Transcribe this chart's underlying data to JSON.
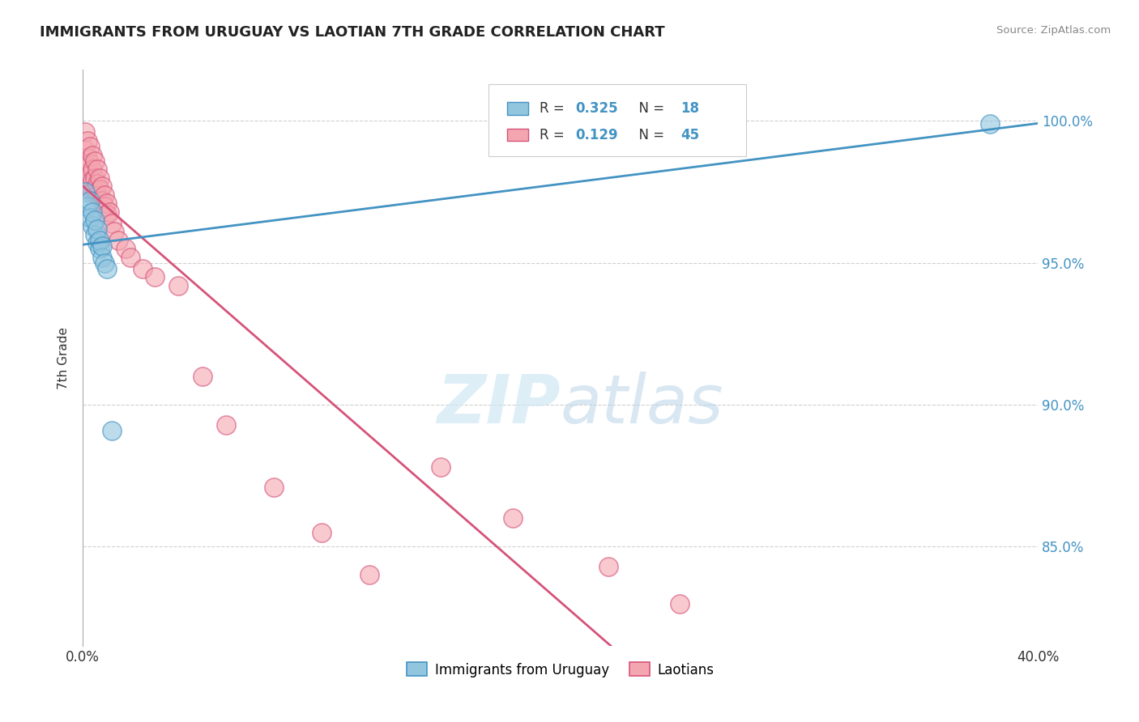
{
  "title": "IMMIGRANTS FROM URUGUAY VS LAOTIAN 7TH GRADE CORRELATION CHART",
  "source_text": "Source: ZipAtlas.com",
  "ylabel": "7th Grade",
  "x_min": 0.0,
  "x_max": 0.4,
  "y_min": 0.815,
  "y_max": 1.018,
  "x_tick_labels": [
    "0.0%",
    "40.0%"
  ],
  "y_tick_labels": [
    "85.0%",
    "90.0%",
    "95.0%",
    "100.0%"
  ],
  "y_tick_values": [
    0.85,
    0.9,
    0.95,
    1.0
  ],
  "legend_labels": [
    "Immigrants from Uruguay",
    "Laotians"
  ],
  "blue_color": "#92c5de",
  "pink_color": "#f4a6b0",
  "blue_edge_color": "#4393c3",
  "pink_edge_color": "#d6537a",
  "blue_line_color": "#4393c3",
  "pink_line_color": "#d6537a",
  "background_color": "#ffffff",
  "grid_color": "#d0d0d0",
  "watermark_text": "ZIPatlas",
  "figsize": [
    14.06,
    8.92
  ],
  "dpi": 100,
  "uruguay_x": [
    0.001,
    0.002,
    0.003,
    0.003,
    0.004,
    0.004,
    0.005,
    0.005,
    0.006,
    0.006,
    0.007,
    0.007,
    0.008,
    0.008,
    0.009,
    0.01,
    0.012,
    0.38
  ],
  "uruguay_y": [
    0.975,
    0.97,
    0.972,
    0.966,
    0.963,
    0.968,
    0.96,
    0.965,
    0.957,
    0.962,
    0.955,
    0.958,
    0.952,
    0.956,
    0.95,
    0.948,
    0.891,
    0.999
  ],
  "laotian_x": [
    0.001,
    0.001,
    0.002,
    0.002,
    0.002,
    0.003,
    0.003,
    0.003,
    0.003,
    0.004,
    0.004,
    0.004,
    0.004,
    0.005,
    0.005,
    0.005,
    0.006,
    0.006,
    0.006,
    0.007,
    0.007,
    0.008,
    0.008,
    0.009,
    0.009,
    0.01,
    0.01,
    0.011,
    0.012,
    0.013,
    0.015,
    0.018,
    0.02,
    0.025,
    0.03,
    0.04,
    0.05,
    0.06,
    0.08,
    0.1,
    0.12,
    0.15,
    0.18,
    0.22,
    0.25
  ],
  "laotian_y": [
    0.996,
    0.99,
    0.993,
    0.987,
    0.984,
    0.991,
    0.985,
    0.981,
    0.977,
    0.988,
    0.983,
    0.979,
    0.975,
    0.986,
    0.98,
    0.976,
    0.983,
    0.978,
    0.974,
    0.98,
    0.976,
    0.977,
    0.972,
    0.974,
    0.97,
    0.971,
    0.967,
    0.968,
    0.964,
    0.961,
    0.958,
    0.955,
    0.952,
    0.948,
    0.945,
    0.942,
    0.91,
    0.893,
    0.871,
    0.855,
    0.84,
    0.878,
    0.86,
    0.843,
    0.83
  ]
}
